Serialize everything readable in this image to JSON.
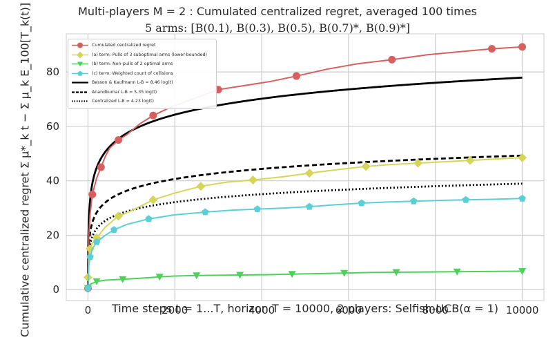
{
  "chart_data": {
    "type": "line",
    "title": "Multi-players M = 2 : Cumulated centralized regret, averaged 100 times",
    "subtitle": "5 arms: [B(0.1), B(0.3), B(0.5), B(0.7)*, B(0.9)*]",
    "xlabel": "Time steps t = 1...T, horizon T = 10000, 2 players: Selfish-UCB(α = 1)",
    "ylabel": "Cumulative centralized regret Σ μ*_k t − Σ μ_k E_100[T_k(t)]",
    "xlim": [
      -500,
      10500
    ],
    "ylim": [
      -4,
      94
    ],
    "xticks": [
      0,
      2000,
      4000,
      6000,
      8000,
      10000
    ],
    "yticks": [
      0,
      20,
      40,
      60,
      80
    ],
    "grid": true,
    "legend_position": "top-left",
    "series": [
      {
        "name": "Cumulated centralized regret",
        "color": "#d65f5f",
        "marker": "circle",
        "x": [
          0,
          20,
          50,
          100,
          150,
          200,
          300,
          400,
          500,
          700,
          900,
          1200,
          1500,
          1900,
          2400,
          3000,
          3600,
          4200,
          4800,
          5500,
          6200,
          7000,
          7800,
          8600,
          9300,
          10000
        ],
        "y": [
          0.5,
          20,
          28,
          35,
          38,
          41,
          45,
          49,
          52,
          55,
          57,
          61,
          64,
          67,
          70,
          73.5,
          75,
          76.5,
          78.5,
          81,
          83,
          84.5,
          86.3,
          87.5,
          88.5,
          89.2
        ]
      },
      {
        "name": "(a) term: Pulls of 3 suboptimal arms (lower-bounded)",
        "color": "#d5d55a",
        "marker": "diamond",
        "x": [
          0,
          20,
          50,
          100,
          200,
          400,
          700,
          1000,
          1500,
          2000,
          2600,
          3200,
          3800,
          4500,
          5100,
          5800,
          6400,
          7000,
          7600,
          8200,
          8800,
          9400,
          10000
        ],
        "y": [
          4.5,
          12,
          15,
          17,
          19,
          23,
          27,
          29,
          33,
          35.5,
          38,
          39.5,
          40.3,
          41.5,
          42.8,
          44.2,
          45.3,
          46,
          46.5,
          47,
          47.5,
          48,
          48.5
        ]
      },
      {
        "name": "(b) term: Non-pulls of 2 optimal arms",
        "color": "#4fd05b",
        "marker": "triangle-down",
        "x": [
          0,
          50,
          200,
          400,
          800,
          1200,
          1650,
          2000,
          2500,
          3000,
          3500,
          4100,
          4700,
          5300,
          5900,
          6500,
          7100,
          7800,
          8500,
          9200,
          10000
        ],
        "y": [
          0.5,
          2,
          3,
          3.5,
          3.8,
          4.2,
          4.7,
          5,
          5.2,
          5.3,
          5.4,
          5.5,
          5.7,
          5.9,
          6.1,
          6.3,
          6.4,
          6.5,
          6.6,
          6.7,
          6.8
        ]
      },
      {
        "name": "(c) term: Weighted count of collisions",
        "color": "#5bcfd5",
        "marker": "pentagon",
        "x": [
          0,
          20,
          50,
          100,
          200,
          400,
          600,
          900,
          1400,
          2000,
          2700,
          3300,
          3900,
          4500,
          5100,
          5700,
          6300,
          6900,
          7500,
          8100,
          8700,
          9300,
          10000
        ],
        "y": [
          0.5,
          9,
          12,
          15,
          17.5,
          20,
          22,
          24,
          26,
          27.5,
          28.5,
          29.2,
          29.6,
          30,
          30.5,
          31.2,
          31.8,
          32.2,
          32.5,
          32.8,
          33,
          33.2,
          33.5
        ]
      },
      {
        "name": "Besson & Kaufmann L-B = 8.46 log(t)",
        "color": "#000000",
        "style": "solid",
        "coef": 8.46
      },
      {
        "name": "Anandkumar L-B = 5.35 log(t)",
        "color": "#000000",
        "style": "dashed",
        "coef": 5.35
      },
      {
        "name": "Centralized L-B = 4.23 log(t)",
        "color": "#000000",
        "style": "dotted",
        "coef": 4.23
      }
    ]
  }
}
